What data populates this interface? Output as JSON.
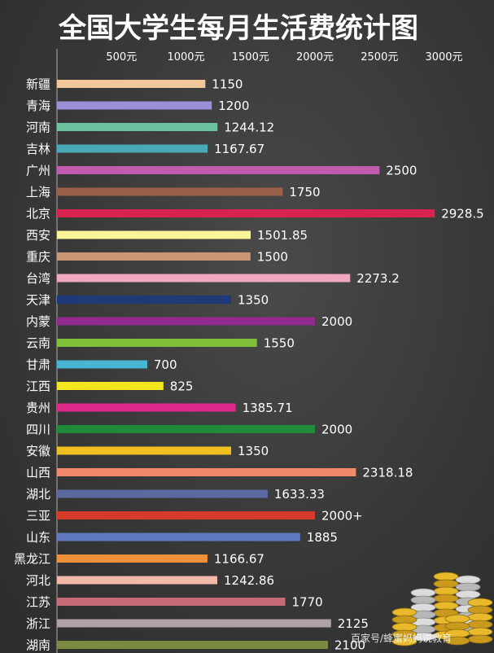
{
  "chart_data": {
    "type": "bar",
    "orientation": "horizontal",
    "title": "全国大学生每月生活费统计图",
    "x_ticks": [
      {
        "label": "500元",
        "value": 500
      },
      {
        "label": "1000元",
        "value": 1000
      },
      {
        "label": "1500元",
        "value": 1500
      },
      {
        "label": "2000元",
        "value": 2000
      },
      {
        "label": "2500元",
        "value": 2500
      },
      {
        "label": "3000元",
        "value": 3000
      }
    ],
    "xlim": [
      0,
      2950
    ],
    "grid": false,
    "categories": [
      "新疆",
      "青海",
      "河南",
      "吉林",
      "广州",
      "上海",
      "北京",
      "西安",
      "重庆",
      "台湾",
      "天津",
      "内蒙",
      "云南",
      "甘肃",
      "江西",
      "贵州",
      "四川",
      "安徽",
      "山西",
      "湖北",
      "三亚",
      "山东",
      "黑龙江",
      "河北",
      "江苏",
      "浙江",
      "湖南"
    ],
    "values": [
      1150,
      1200,
      1244.12,
      1167.67,
      2500,
      1750,
      2928.5,
      1501.85,
      1500,
      2273.2,
      1350,
      2000,
      1550,
      700,
      825,
      1385.71,
      2000,
      1350,
      2318.18,
      1633.33,
      2000,
      1885,
      1166.67,
      1242.86,
      1770,
      2125,
      2100
    ],
    "value_labels": [
      "1150",
      "1200",
      "1244.12",
      "1167.67",
      "2500",
      "1750",
      "2928.5",
      "1501.85",
      "1500",
      "2273.2",
      "1350",
      "2000",
      "1550",
      "700",
      "825",
      "1385.71",
      "2000",
      "1350",
      "2318.18",
      "1633.33",
      "2000+",
      "1885",
      "1166.67",
      "1242.86",
      "1770",
      "2125",
      "2100"
    ],
    "colors": [
      "#f2c79a",
      "#9b8fd8",
      "#6cc3a0",
      "#4aa9b8",
      "#c25bb0",
      "#9a6048",
      "#d8234f",
      "#fbf59a",
      "#c99773",
      "#f0a7c2",
      "#1f3a78",
      "#932a8e",
      "#7fbf3a",
      "#48b6d0",
      "#f4e61c",
      "#dd2a8a",
      "#1f8a3a",
      "#f0c020",
      "#f08a6a",
      "#5a6aa0",
      "#d83a2a",
      "#6078c0",
      "#f0903a",
      "#f2b9a8",
      "#c66a78",
      "#b0a0a8",
      "#7a8a40"
    ]
  },
  "watermark": "百家号/蜂蜜妈妈说教育"
}
